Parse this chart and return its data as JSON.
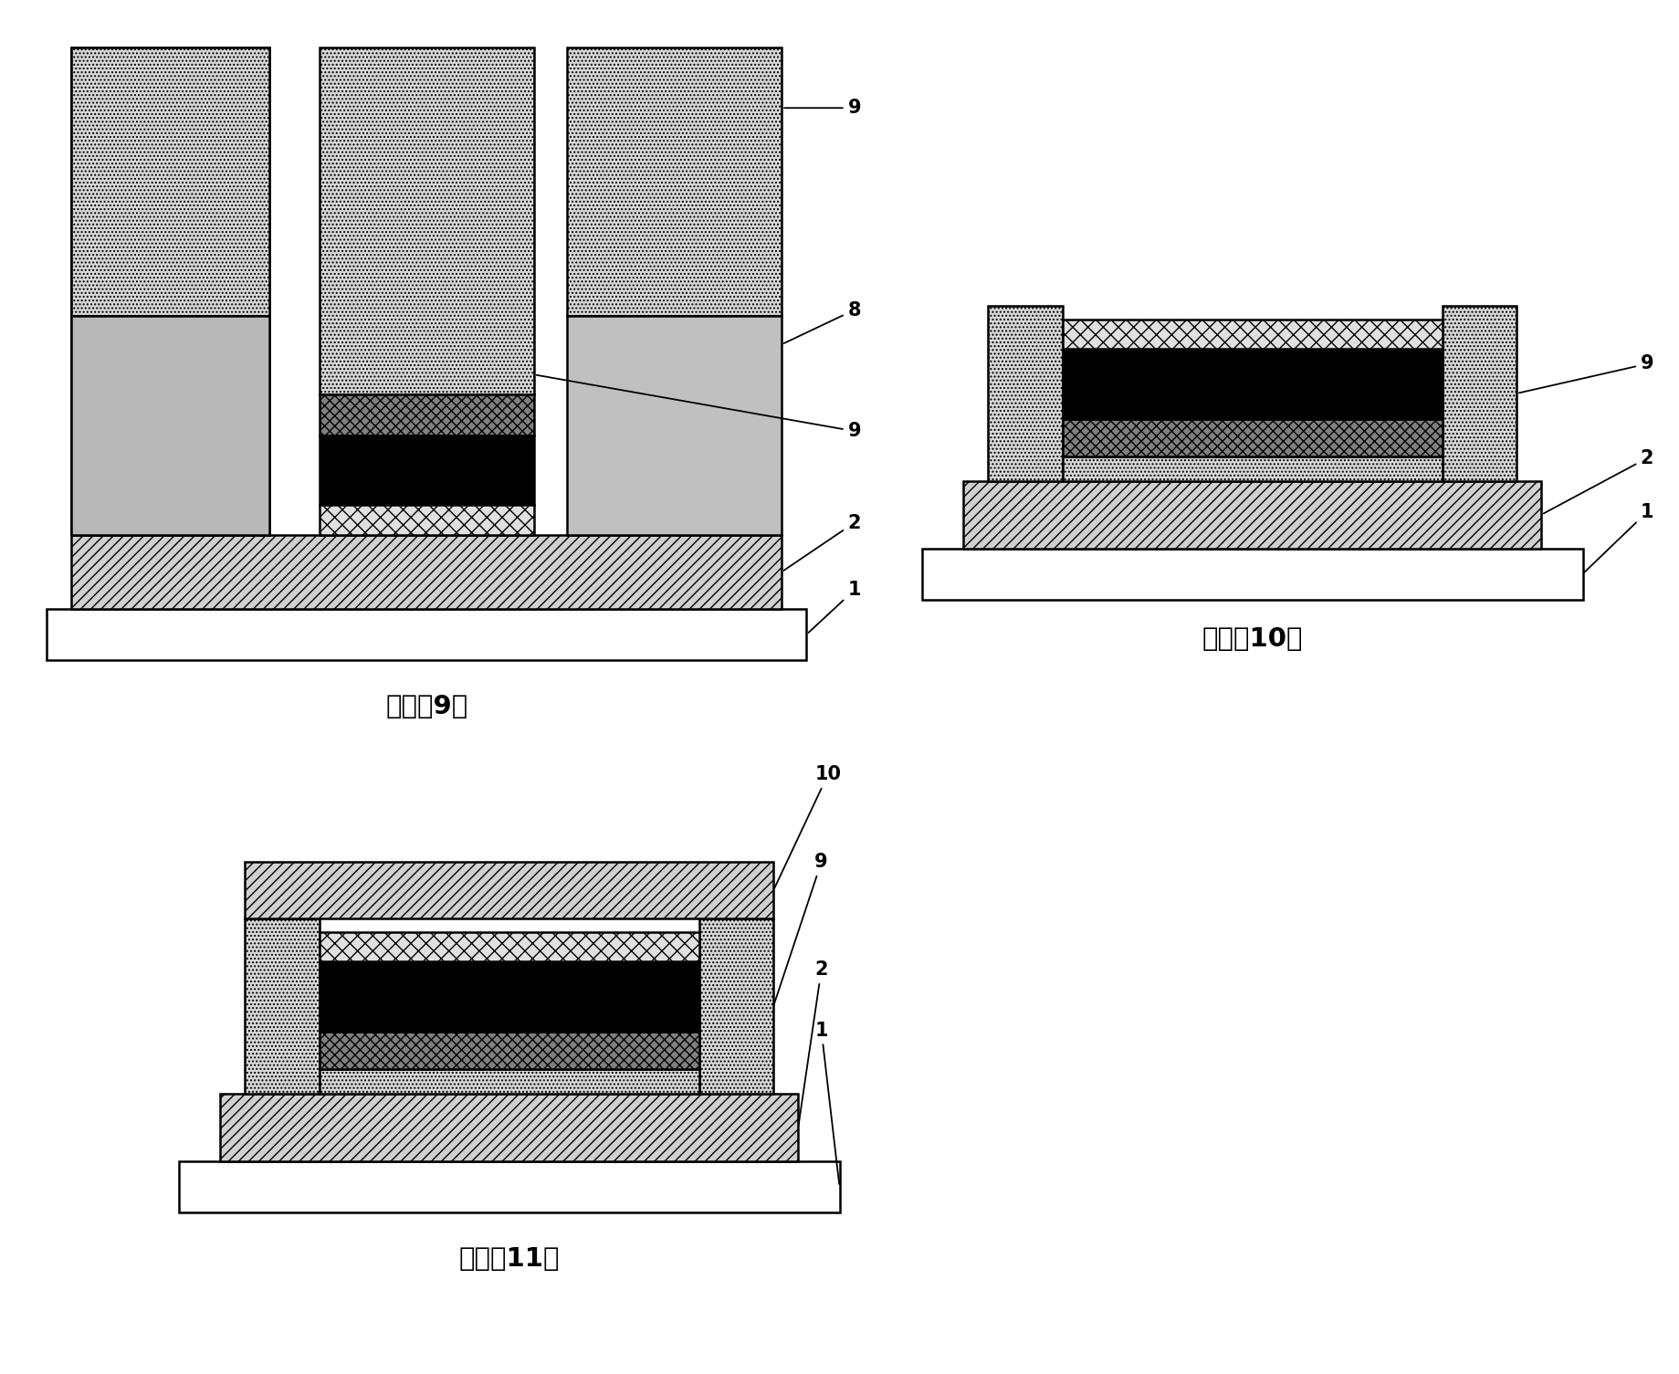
{
  "background_color": "#ffffff",
  "fig_width": 18.39,
  "fig_height": 15.05,
  "step9_label": "步骤（9）",
  "step10_label": "步骤（10）",
  "step11_label": "步骤（11）",
  "dotted_color": "#d8d8d8",
  "mottled_color": "#c0c0c0",
  "hatch_color": "#d0d0d0",
  "black_color": "#000000",
  "diag_color": "#808080",
  "white_color": "#ffffff",
  "cross_color": "#e0e0e0"
}
